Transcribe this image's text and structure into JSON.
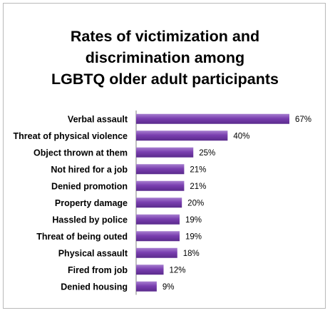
{
  "chart_data": {
    "type": "bar",
    "orientation": "horizontal",
    "title_lines": [
      "Rates of victimization and",
      "discrimination among",
      "LGBTQ older adult participants"
    ],
    "categories": [
      "Verbal assault",
      "Threat of physical violence",
      "Object thrown at them",
      "Not hired for a job",
      "Denied promotion",
      "Property damage",
      "Hassled by police",
      "Threat of being outed",
      "Physical assault",
      "Fired from job",
      "Denied housing"
    ],
    "values": [
      67,
      40,
      25,
      21,
      21,
      20,
      19,
      19,
      18,
      12,
      9
    ],
    "value_labels": [
      "67%",
      "40%",
      "25%",
      "21%",
      "21%",
      "20%",
      "19%",
      "19%",
      "18%",
      "12%",
      "9%"
    ],
    "unit": "%",
    "xlim": [
      0,
      100
    ],
    "grid": false,
    "legend": "none",
    "bar_color": "#7a3fb0",
    "bar_color_light": "#a77fd0",
    "bar_color_dark": "#5a2a8c"
  }
}
